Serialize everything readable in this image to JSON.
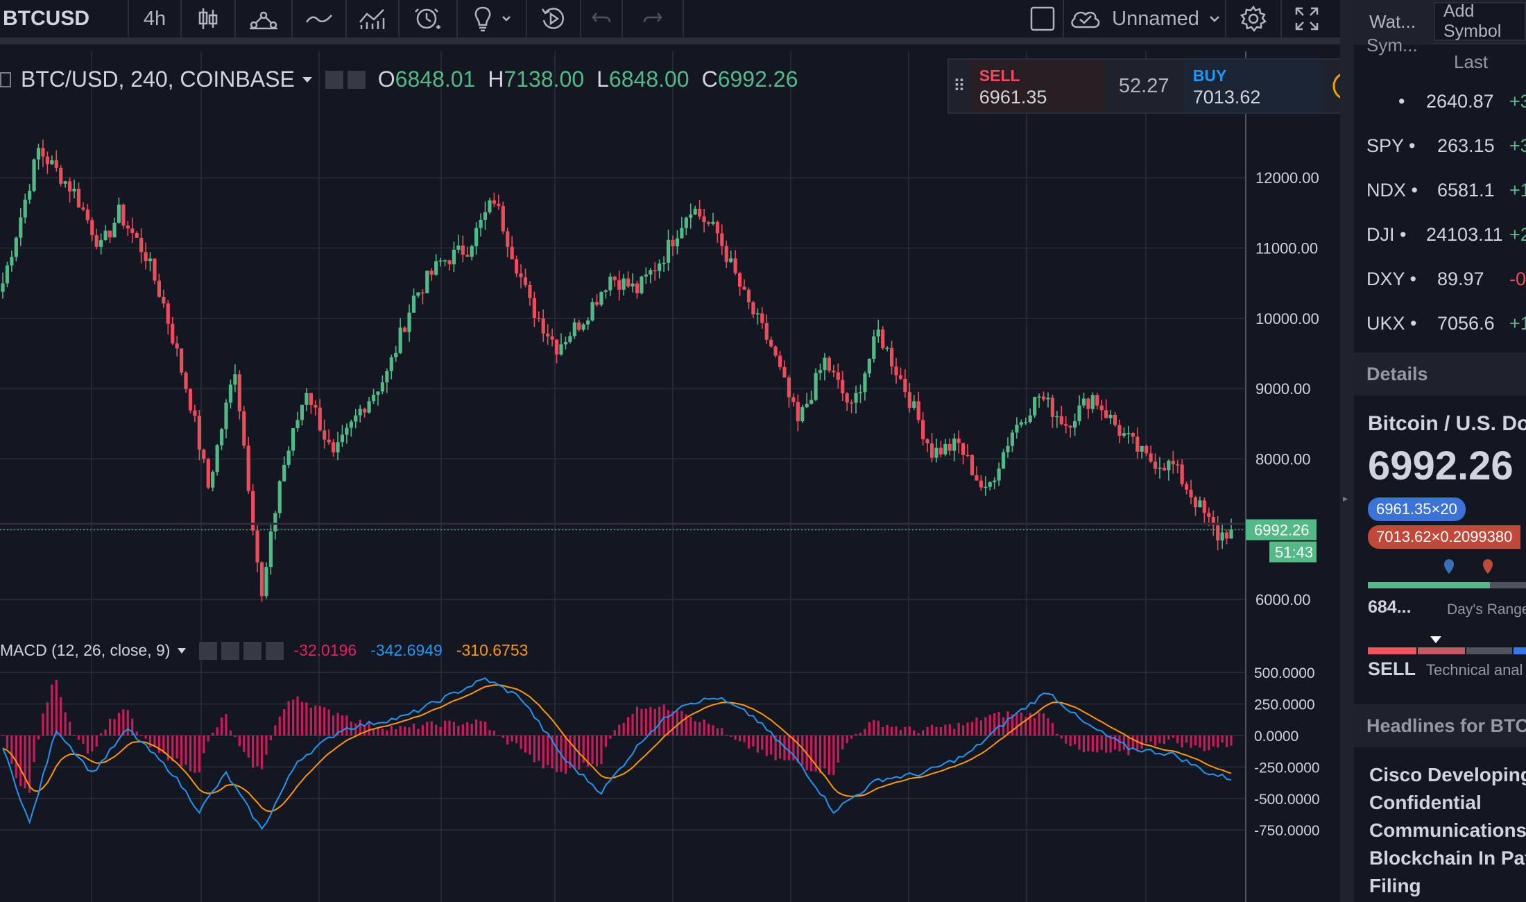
{
  "toolbar": {
    "symbol": "BTCUSD",
    "interval": "4h",
    "layout_name": "Unnamed"
  },
  "legend": {
    "title": "BTC/USD, 240, COINBASE",
    "open_label": "O",
    "open": "6848.01",
    "high_label": "H",
    "high": "7138.00",
    "low_label": "L",
    "low": "6848.00",
    "close_label": "C",
    "close": "6992.26"
  },
  "trade": {
    "sell_label": "SELL",
    "sell_price": "6961.35",
    "spread": "52.27",
    "buy_label": "BUY",
    "buy_price": "7013.62"
  },
  "price_axis": {
    "ticks": [
      "12000.00",
      "11000.00",
      "10000.00",
      "9000.00",
      "8000.00",
      "6000.00"
    ],
    "last_price": "6992.26",
    "countdown": "51:43"
  },
  "macd": {
    "title": "MACD (12, 26, close, 9)",
    "hist_value": "-32.0196",
    "macd_value": "-342.6949",
    "signal_value": "-310.6753",
    "ticks": [
      "500.0000",
      "250.0000",
      "0.0000",
      "-250.0000",
      "-500.0000",
      "-750.0000"
    ]
  },
  "watchlist": {
    "tab": "Wat...",
    "add_symbol": "Add Symbol",
    "col_symbol": "Sym...",
    "col_last": "Last",
    "rows": [
      {
        "sym": "",
        "last": "2640.87",
        "chg": "+3"
      },
      {
        "sym": "SPY",
        "last": "263.15",
        "chg": "+3"
      },
      {
        "sym": "NDX",
        "last": "6581.1",
        "chg": "+1"
      },
      {
        "sym": "DJI",
        "last": "24103.11",
        "chg": "+2"
      },
      {
        "sym": "DXY",
        "last": "89.97",
        "chg": "-0."
      },
      {
        "sym": "UKX",
        "last": "7056.6",
        "chg": "+1"
      }
    ]
  },
  "details": {
    "header": "Details",
    "name": "Bitcoin / U.S. Do",
    "price": "6992.26",
    "bid_badge": "6961.35×20",
    "ask_badge": "7013.62×0.2099380",
    "day_low": "684...",
    "day_range_label": "Day's Range",
    "rating": "SELL",
    "technical_label": "Technical anal"
  },
  "headlines": {
    "header": "Headlines for BTCU",
    "items": [
      "Cisco Developing",
      "Confidential",
      "Communications",
      "Blockchain In Pat",
      "Filing"
    ]
  },
  "colors": {
    "up": "#53b987",
    "down": "#eb4d5c",
    "macd_line": "#2196f3",
    "signal_line": "#ff9800",
    "hist": "#e91e63",
    "background": "#131722",
    "grid": "#2a2e39"
  },
  "chart_data": {
    "type": "candlestick",
    "interval": "240",
    "exchange": "COINBASE",
    "price_anchors": [
      [
        0,
        10500
      ],
      [
        8,
        12400
      ],
      [
        16,
        11800
      ],
      [
        22,
        11000
      ],
      [
        26,
        11500
      ],
      [
        32,
        10900
      ],
      [
        36,
        10200
      ],
      [
        42,
        8800
      ],
      [
        46,
        7600
      ],
      [
        52,
        9300
      ],
      [
        58,
        6000
      ],
      [
        62,
        7700
      ],
      [
        68,
        9000
      ],
      [
        74,
        8000
      ],
      [
        80,
        8700
      ],
      [
        86,
        9200
      ],
      [
        92,
        10300
      ],
      [
        98,
        10800
      ],
      [
        104,
        11000
      ],
      [
        110,
        11700
      ],
      [
        118,
        10200
      ],
      [
        124,
        9600
      ],
      [
        130,
        10000
      ],
      [
        136,
        10600
      ],
      [
        142,
        10400
      ],
      [
        148,
        10900
      ],
      [
        154,
        11600
      ],
      [
        160,
        11200
      ],
      [
        166,
        10300
      ],
      [
        172,
        9600
      ],
      [
        178,
        8500
      ],
      [
        184,
        9400
      ],
      [
        190,
        8700
      ],
      [
        196,
        9800
      ],
      [
        202,
        9000
      ],
      [
        208,
        8100
      ],
      [
        214,
        8200
      ],
      [
        220,
        7500
      ],
      [
        226,
        8400
      ],
      [
        232,
        8900
      ],
      [
        238,
        8500
      ],
      [
        244,
        8900
      ],
      [
        250,
        8400
      ],
      [
        256,
        8000
      ],
      [
        262,
        7900
      ],
      [
        268,
        7300
      ],
      [
        272,
        6900
      ],
      [
        275,
        6992.26
      ]
    ],
    "macd_anchors": [
      [
        0,
        -100
      ],
      [
        6,
        -700
      ],
      [
        12,
        50
      ],
      [
        20,
        -300
      ],
      [
        28,
        50
      ],
      [
        38,
        -300
      ],
      [
        44,
        -600
      ],
      [
        50,
        -300
      ],
      [
        58,
        -750
      ],
      [
        66,
        -200
      ],
      [
        76,
        50
      ],
      [
        90,
        150
      ],
      [
        102,
        350
      ],
      [
        108,
        450
      ],
      [
        116,
        300
      ],
      [
        126,
        -200
      ],
      [
        134,
        -450
      ],
      [
        144,
        0
      ],
      [
        152,
        250
      ],
      [
        160,
        300
      ],
      [
        168,
        150
      ],
      [
        178,
        -200
      ],
      [
        186,
        -600
      ],
      [
        196,
        -350
      ],
      [
        206,
        -300
      ],
      [
        216,
        -150
      ],
      [
        226,
        150
      ],
      [
        234,
        350
      ],
      [
        242,
        100
      ],
      [
        252,
        -100
      ],
      [
        262,
        -150
      ],
      [
        270,
        -300
      ],
      [
        275,
        -343
      ]
    ]
  }
}
